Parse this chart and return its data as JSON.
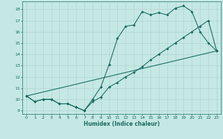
{
  "xlabel": "Humidex (Indice chaleur)",
  "xlim_min": -0.5,
  "xlim_max": 23.5,
  "ylim_min": 8.7,
  "ylim_max": 18.7,
  "yticks": [
    9,
    10,
    11,
    12,
    13,
    14,
    15,
    16,
    17,
    18
  ],
  "xticks": [
    0,
    1,
    2,
    3,
    4,
    5,
    6,
    7,
    8,
    9,
    10,
    11,
    12,
    13,
    14,
    15,
    16,
    17,
    18,
    19,
    20,
    21,
    22,
    23
  ],
  "bg_color": "#c5e8e5",
  "grid_color": "#b0d5d0",
  "line_color": "#1a6b60",
  "line1_x": [
    0,
    1,
    2,
    3,
    4,
    5,
    6,
    7,
    8,
    9,
    10,
    11,
    12,
    13,
    14,
    15,
    16,
    17,
    18,
    19,
    20,
    21,
    22,
    23
  ],
  "line1_y": [
    10.3,
    9.8,
    10.0,
    10.0,
    9.6,
    9.6,
    9.3,
    9.0,
    9.8,
    10.2,
    11.1,
    11.5,
    12.0,
    12.4,
    12.9,
    13.5,
    14.0,
    14.5,
    15.0,
    15.5,
    16.0,
    16.5,
    17.0,
    14.3
  ],
  "line2_x": [
    0,
    1,
    2,
    3,
    4,
    5,
    6,
    7,
    8,
    9,
    10,
    11,
    12,
    13,
    14,
    15,
    16,
    17,
    18,
    19,
    20,
    21,
    22,
    23
  ],
  "line2_y": [
    10.3,
    9.8,
    10.0,
    10.0,
    9.6,
    9.6,
    9.3,
    9.0,
    10.0,
    11.1,
    13.1,
    15.4,
    16.5,
    16.6,
    17.8,
    17.5,
    17.7,
    17.5,
    18.1,
    18.3,
    17.8,
    16.0,
    15.0,
    14.3
  ],
  "line3_x": [
    0,
    23
  ],
  "line3_y": [
    10.3,
    14.3
  ],
  "figsize": [
    3.2,
    2.0
  ],
  "dpi": 100
}
